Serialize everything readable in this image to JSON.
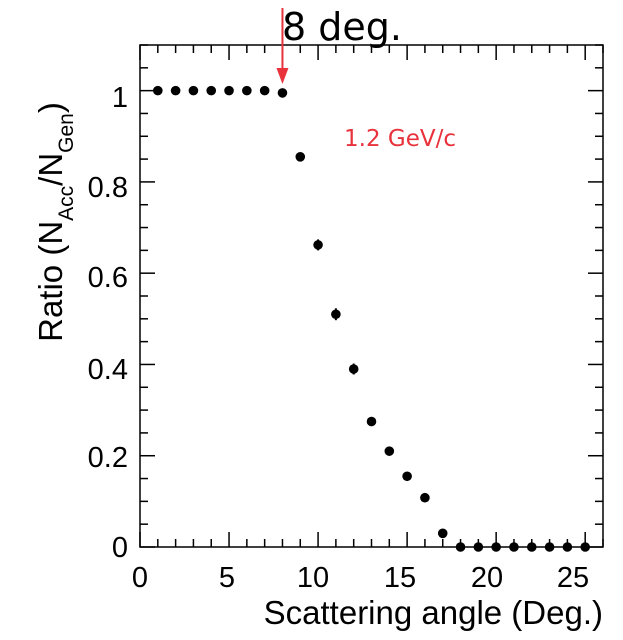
{
  "chart_data": {
    "type": "scatter",
    "xlabel": "Scattering angle (Deg.)",
    "ylabel": {
      "prefix": "Ratio (N",
      "sub1": "Acc",
      "middle": "/N",
      "sub2": "Gen",
      "suffix": ")"
    },
    "xlim": [
      0,
      26
    ],
    "ylim": [
      0,
      1.1
    ],
    "x_ticks": [
      "0",
      "5",
      "10",
      "15",
      "20",
      "25"
    ],
    "y_ticks": [
      "0",
      "0.2",
      "0.4",
      "0.6",
      "0.8",
      "1"
    ],
    "grid": false,
    "points": [
      {
        "x": 1,
        "y": 1.0,
        "err": 0.0
      },
      {
        "x": 2,
        "y": 1.0,
        "err": 0.0
      },
      {
        "x": 3,
        "y": 1.0,
        "err": 0.0
      },
      {
        "x": 4,
        "y": 1.0,
        "err": 0.0
      },
      {
        "x": 5,
        "y": 1.0,
        "err": 0.0
      },
      {
        "x": 6,
        "y": 1.0,
        "err": 0.0
      },
      {
        "x": 7,
        "y": 1.0,
        "err": 0.0
      },
      {
        "x": 8,
        "y": 0.995,
        "err": 0.0
      },
      {
        "x": 9,
        "y": 0.855,
        "err": 0.006
      },
      {
        "x": 10,
        "y": 0.662,
        "err": 0.012
      },
      {
        "x": 11,
        "y": 0.51,
        "err": 0.013
      },
      {
        "x": 12,
        "y": 0.39,
        "err": 0.012
      },
      {
        "x": 13,
        "y": 0.275,
        "err": 0.01
      },
      {
        "x": 14,
        "y": 0.21,
        "err": 0.009
      },
      {
        "x": 15,
        "y": 0.155,
        "err": 0.007
      },
      {
        "x": 16,
        "y": 0.108,
        "err": 0.004
      },
      {
        "x": 17,
        "y": 0.03,
        "err": 0.0
      },
      {
        "x": 18,
        "y": 0.0,
        "err": 0.0
      },
      {
        "x": 19,
        "y": 0.0,
        "err": 0.0
      },
      {
        "x": 20,
        "y": 0.0,
        "err": 0.0
      },
      {
        "x": 21,
        "y": 0.0,
        "err": 0.0
      },
      {
        "x": 22,
        "y": 0.0,
        "err": 0.0
      },
      {
        "x": 23,
        "y": 0.0,
        "err": 0.0
      },
      {
        "x": 24,
        "y": 0.0,
        "err": 0.0
      },
      {
        "x": 25,
        "y": 0.0,
        "err": 0.0
      }
    ],
    "annotations": {
      "angle_label": "8 deg.",
      "arrow_x": 8,
      "energy_label": "1.2 GeV/c",
      "energy_color": "#e8323c",
      "arrow_color": "#e8323c"
    }
  }
}
